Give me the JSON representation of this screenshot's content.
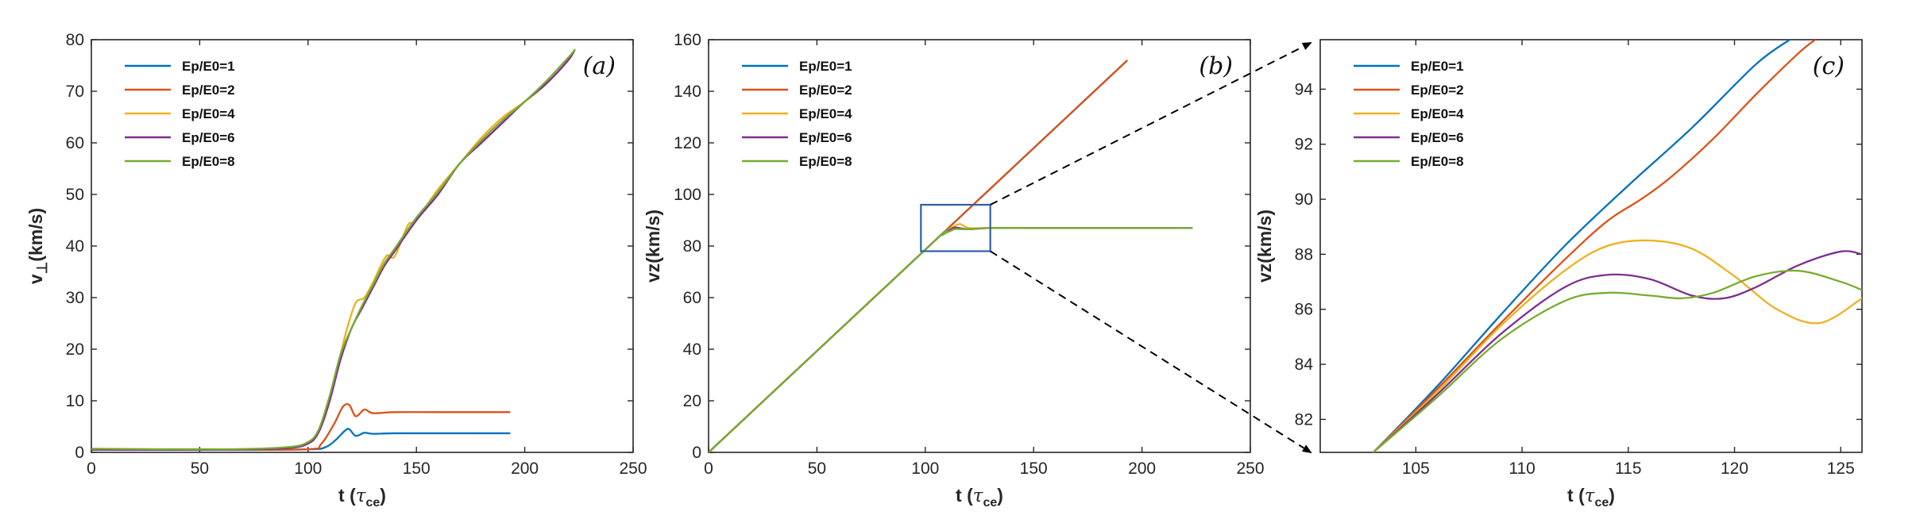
{
  "colors": {
    "Ep/E0=1": "#0072BD",
    "Ep/E0=2": "#D95319",
    "Ep/E0=4": "#EDB120",
    "Ep/E0=6": "#7E2F8E",
    "Ep/E0=8": "#77AC30",
    "zoom_box": "#2E5FA8"
  },
  "chart_data": [
    {
      "type": "line",
      "panel_label": "(a)",
      "xlabel": "t",
      "xlabel_sym": "τ",
      "xlabel_sub": "ce",
      "ylabel": "v",
      "ylabel_sub": "⊥",
      "ylabel_unit": "(km/s)",
      "xlim": [
        0,
        250
      ],
      "ylim": [
        0,
        80
      ],
      "xticks": [
        0,
        50,
        100,
        150,
        200,
        250
      ],
      "yticks": [
        0,
        10,
        20,
        30,
        40,
        50,
        60,
        70,
        80
      ],
      "legend_position": "top-left",
      "series": [
        {
          "name": "Ep/E0=1",
          "x": [
            0,
            60,
            100,
            108,
            113,
            117,
            119,
            122,
            126,
            130,
            140,
            160,
            193
          ],
          "y": [
            0.5,
            0.5,
            0.6,
            1.0,
            2.5,
            4.2,
            4.5,
            3.2,
            3.8,
            3.6,
            3.7,
            3.7,
            3.7
          ]
        },
        {
          "name": "Ep/E0=2",
          "x": [
            0,
            60,
            100,
            106,
            112,
            116,
            119,
            122,
            126,
            130,
            140,
            160,
            193
          ],
          "y": [
            0.5,
            0.5,
            0.6,
            1.6,
            5.5,
            8.8,
            9.2,
            7.0,
            8.3,
            7.6,
            7.8,
            7.8,
            7.8
          ]
        },
        {
          "name": "Ep/E0=4",
          "x": [
            0,
            60,
            90,
            100,
            105,
            110,
            115,
            118,
            122,
            126,
            130,
            136,
            140,
            146,
            150,
            160,
            170,
            180,
            190,
            200,
            210,
            220,
            223
          ],
          "y": [
            0.5,
            0.5,
            0.8,
            1.8,
            4,
            10,
            19,
            24,
            29,
            30,
            33,
            38,
            38,
            44,
            45,
            51,
            56,
            61,
            65,
            68,
            71.5,
            76,
            78
          ]
        },
        {
          "name": "Ep/E0=6",
          "x": [
            0,
            60,
            90,
            100,
            105,
            110,
            115,
            120,
            125,
            130,
            135,
            140,
            150,
            160,
            170,
            180,
            190,
            200,
            210,
            220,
            223
          ],
          "y": [
            0.5,
            0.5,
            0.8,
            1.7,
            4,
            10,
            18,
            24,
            28,
            32,
            36,
            39,
            45,
            50,
            56,
            60,
            64,
            68,
            71.5,
            76,
            78
          ]
        },
        {
          "name": "Ep/E0=8",
          "x": [
            0,
            60,
            90,
            100,
            105,
            110,
            115,
            120,
            125,
            130,
            135,
            140,
            150,
            160,
            170,
            180,
            190,
            200,
            210,
            220,
            223
          ],
          "y": [
            0.7,
            0.6,
            1.0,
            2.0,
            4.5,
            11,
            19,
            24,
            28.5,
            32.5,
            36.5,
            39.5,
            45.5,
            50.5,
            56,
            60.5,
            64.5,
            68,
            72,
            76.5,
            78
          ]
        }
      ]
    },
    {
      "type": "line",
      "panel_label": "(b)",
      "xlabel": "t",
      "xlabel_sym": "τ",
      "xlabel_sub": "ce",
      "ylabel": "vz(km/s)",
      "xlim": [
        0,
        250
      ],
      "ylim": [
        0,
        160
      ],
      "xticks": [
        0,
        50,
        100,
        150,
        200,
        250
      ],
      "yticks": [
        0,
        20,
        40,
        60,
        80,
        100,
        120,
        140,
        160
      ],
      "legend_position": "top-left",
      "zoom_box": {
        "x": [
          98,
          130
        ],
        "y": [
          78,
          96
        ]
      },
      "series": [
        {
          "name": "Ep/E0=1",
          "x": [
            0,
            100,
            193
          ],
          "y": [
            0,
            78.6,
            151.8
          ]
        },
        {
          "name": "Ep/E0=2",
          "x": [
            0,
            100,
            193
          ],
          "y": [
            0,
            78.6,
            151.8
          ]
        },
        {
          "name": "Ep/E0=4",
          "x": [
            0,
            100,
            108,
            112,
            116,
            120,
            130,
            150,
            180,
            200,
            223
          ],
          "y": [
            0,
            78.6,
            84.5,
            87,
            88.5,
            87,
            87,
            87,
            87,
            87,
            87
          ]
        },
        {
          "name": "Ep/E0=6",
          "x": [
            0,
            100,
            108,
            112,
            114,
            120,
            130,
            150,
            180,
            200,
            223
          ],
          "y": [
            0,
            78.6,
            84.5,
            86.5,
            87.2,
            86.5,
            87,
            87,
            87,
            87,
            87
          ]
        },
        {
          "name": "Ep/E0=8",
          "x": [
            0,
            100,
            108,
            112,
            114,
            120,
            130,
            150,
            180,
            200,
            223
          ],
          "y": [
            0,
            78.6,
            84.3,
            86,
            86.6,
            86.5,
            87,
            87,
            87,
            87,
            87
          ]
        }
      ]
    },
    {
      "type": "line",
      "panel_label": "(c)",
      "xlabel": "t",
      "xlabel_sym": "τ",
      "xlabel_sub": "ce",
      "ylabel": "vz(km/s)",
      "xlim": [
        100.5,
        126
      ],
      "ylim": [
        80.8,
        95.8
      ],
      "xticks": [
        105,
        110,
        115,
        120,
        125
      ],
      "yticks": [
        82,
        84,
        86,
        88,
        90,
        92,
        94
      ],
      "legend_position": "top-left",
      "series": [
        {
          "name": "Ep/E0=1",
          "x": [
            103,
            106,
            109,
            112,
            115,
            118,
            121,
            122.6
          ],
          "y": [
            80.8,
            83.2,
            85.8,
            88.3,
            90.5,
            92.6,
            94.9,
            95.8
          ]
        },
        {
          "name": "Ep/E0=2",
          "x": [
            103,
            106,
            109,
            112,
            114,
            115.6,
            117,
            119,
            121,
            123,
            123.8
          ],
          "y": [
            80.8,
            83.1,
            85.5,
            87.8,
            89.2,
            90.0,
            90.8,
            92.2,
            93.8,
            95.3,
            95.8
          ]
        },
        {
          "name": "Ep/E0=4",
          "x": [
            103,
            106,
            109,
            112,
            114,
            116,
            118,
            120,
            122,
            124,
            126
          ],
          "y": [
            80.8,
            83,
            85.4,
            87.4,
            88.3,
            88.5,
            88.2,
            87.2,
            86,
            85.5,
            86.4
          ]
        },
        {
          "name": "Ep/E0=6",
          "x": [
            103,
            106,
            109,
            112,
            114,
            116,
            118,
            119.5,
            121,
            123,
            125,
            126
          ],
          "y": [
            80.8,
            82.9,
            85.1,
            86.8,
            87.25,
            87.1,
            86.5,
            86.4,
            86.8,
            87.6,
            88.1,
            88.0
          ]
        },
        {
          "name": "Ep/E0=8",
          "x": [
            103,
            106,
            109,
            112,
            114,
            116,
            117.5,
            119,
            121,
            123,
            125,
            126
          ],
          "y": [
            80.8,
            82.8,
            84.9,
            86.3,
            86.6,
            86.5,
            86.4,
            86.6,
            87.2,
            87.4,
            87.0,
            86.7
          ]
        }
      ]
    }
  ]
}
